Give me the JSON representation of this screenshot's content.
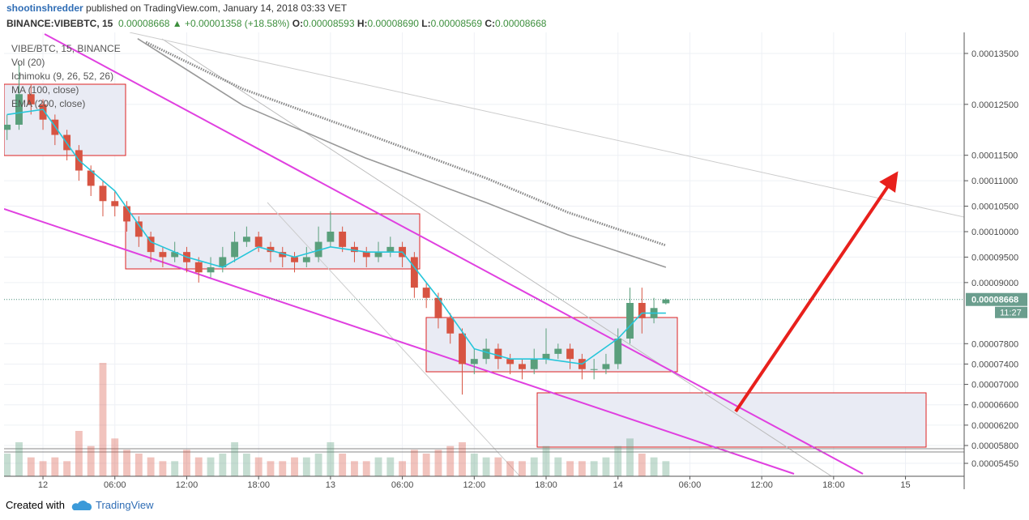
{
  "header": {
    "author": "shootinshredder",
    "published": "published on TradingView.com, January 14, 2018 03:33 VET",
    "symbol": "BINANCE:VIBEBTC, 15",
    "last": "0.00008668",
    "change": "▲ +0.00001358 (+18.58%)",
    "ohlc": [
      {
        "key": "O:",
        "value": "0.00008593"
      },
      {
        "key": "H:",
        "value": "0.00008690"
      },
      {
        "key": "L:",
        "value": "0.00008569"
      },
      {
        "key": "C:",
        "value": "0.00008668"
      }
    ]
  },
  "chart_data": {
    "type": "candlestick",
    "legend": [
      "Ichimoku (9, 26, 52, 26)"
    ],
    "candles": {
      "name": "VIBE/BTC, 15, BINANCE",
      "up_color": "#5a9f7c",
      "down_color": "#d75442",
      "x": [
        -3,
        -2,
        -1,
        0,
        1,
        2,
        3,
        4,
        5,
        6,
        7,
        8,
        9,
        10,
        11,
        12,
        13,
        14,
        15,
        16,
        17,
        18,
        19,
        20,
        21,
        22,
        23,
        24,
        25,
        26,
        27,
        28,
        29,
        30,
        31,
        32,
        33,
        34,
        35,
        36,
        37,
        38,
        39,
        40,
        41,
        42,
        43,
        44,
        45,
        46,
        47,
        48,
        49,
        50,
        51,
        52
      ],
      "ohlc": [
        [
          0.00012,
          0.000123,
          0.000118,
          0.000121
        ],
        [
          0.000121,
          0.000133,
          0.00012,
          0.000127
        ],
        [
          0.000127,
          0.000129,
          0.000123,
          0.000125
        ],
        [
          0.000125,
          0.000126,
          0.00012,
          0.000122
        ],
        [
          0.000122,
          0.000123,
          0.000117,
          0.000119
        ],
        [
          0.000119,
          0.00012,
          0.000114,
          0.000116
        ],
        [
          0.000116,
          0.000117,
          0.00011,
          0.000112
        ],
        [
          0.000112,
          0.000113,
          0.000107,
          0.000109
        ],
        [
          0.000109,
          0.00011,
          0.000103,
          0.000106
        ],
        [
          0.000106,
          0.000108,
          0.000103,
          0.000105
        ],
        [
          0.000105,
          0.000106,
          0.0001,
          0.000102
        ],
        [
          0.000102,
          0.000103,
          9.7e-05,
          9.9e-05
        ],
        [
          9.9e-05,
          0.0001,
          9.4e-05,
          9.6e-05
        ],
        [
          9.6e-05,
          9.7e-05,
          9.3e-05,
          9.5e-05
        ],
        [
          9.5e-05,
          9.8e-05,
          9.4e-05,
          9.6e-05
        ],
        [
          9.6e-05,
          9.7e-05,
          9.2e-05,
          9.4e-05
        ],
        [
          9.4e-05,
          9.5e-05,
          9e-05,
          9.2e-05
        ],
        [
          9.2e-05,
          9.5e-05,
          9.1e-05,
          9.3e-05
        ],
        [
          9.3e-05,
          9.7e-05,
          9.2e-05,
          9.5e-05
        ],
        [
          9.5e-05,
          0.0001,
          9.4e-05,
          9.8e-05
        ],
        [
          9.8e-05,
          0.000101,
          9.7e-05,
          9.9e-05
        ],
        [
          9.9e-05,
          0.0001,
          9.6e-05,
          9.7e-05
        ],
        [
          9.7e-05,
          9.8e-05,
          9.4e-05,
          9.6e-05
        ],
        [
          9.6e-05,
          9.7e-05,
          9.3e-05,
          9.5e-05
        ],
        [
          9.5e-05,
          9.6e-05,
          9.2e-05,
          9.4e-05
        ],
        [
          9.4e-05,
          9.7e-05,
          9.3e-05,
          9.5e-05
        ],
        [
          9.5e-05,
          0.000101,
          9.4e-05,
          9.8e-05
        ],
        [
          9.8e-05,
          0.000104,
          9.7e-05,
          0.0001
        ],
        [
          0.0001,
          0.000101,
          9.6e-05,
          9.7e-05
        ],
        [
          9.7e-05,
          9.8e-05,
          9.4e-05,
          9.6e-05
        ],
        [
          9.6e-05,
          9.7e-05,
          9.3e-05,
          9.5e-05
        ],
        [
          9.5e-05,
          9.8e-05,
          9.4e-05,
          9.6e-05
        ],
        [
          9.6e-05,
          9.9e-05,
          9.5e-05,
          9.7e-05
        ],
        [
          9.7e-05,
          9.8e-05,
          9.3e-05,
          9.5e-05
        ],
        [
          9.5e-05,
          9.6e-05,
          8.7e-05,
          8.9e-05
        ],
        [
          8.9e-05,
          9e-05,
          8.5e-05,
          8.7e-05
        ],
        [
          8.7e-05,
          8.8e-05,
          8.1e-05,
          8.3e-05
        ],
        [
          8.3e-05,
          8.4e-05,
          7.8e-05,
          8e-05
        ],
        [
          8e-05,
          8.1e-05,
          6.8e-05,
          7.4e-05
        ],
        [
          7.4e-05,
          7.7e-05,
          7.2e-05,
          7.5e-05
        ],
        [
          7.5e-05,
          7.9e-05,
          7.4e-05,
          7.7e-05
        ],
        [
          7.7e-05,
          7.8e-05,
          7.3e-05,
          7.5e-05
        ],
        [
          7.5e-05,
          7.6e-05,
          7.2e-05,
          7.4e-05
        ],
        [
          7.4e-05,
          7.5e-05,
          7.1e-05,
          7.3e-05
        ],
        [
          7.3e-05,
          7.7e-05,
          7.2e-05,
          7.5e-05
        ],
        [
          7.5e-05,
          8.1e-05,
          7.4e-05,
          7.6e-05
        ],
        [
          7.6e-05,
          7.8e-05,
          7.5e-05,
          7.7e-05
        ],
        [
          7.7e-05,
          7.8e-05,
          7.3e-05,
          7.5e-05
        ],
        [
          7.5e-05,
          7.6e-05,
          7.1e-05,
          7.3e-05
        ],
        [
          7.3e-05,
          7.5e-05,
          7.1e-05,
          7.3e-05
        ],
        [
          7.3e-05,
          7.6e-05,
          7.2e-05,
          7.4e-05
        ],
        [
          7.4e-05,
          8.1e-05,
          7.3e-05,
          7.9e-05
        ],
        [
          7.9e-05,
          8.9e-05,
          7.8e-05,
          8.6e-05
        ],
        [
          8.6e-05,
          8.9e-05,
          8e-05,
          8.3e-05
        ],
        [
          8.3e-05,
          8.7e-05,
          8.2e-05,
          8.5e-05
        ],
        [
          8.593e-05,
          8.69e-05,
          8.569e-05,
          8.668e-05
        ]
      ]
    },
    "volume": {
      "name": "Vol (20)",
      "values": [
        30,
        45,
        25,
        20,
        25,
        20,
        60,
        40,
        150,
        50,
        35,
        30,
        25,
        20,
        20,
        35,
        25,
        25,
        30,
        45,
        30,
        25,
        20,
        20,
        25,
        25,
        30,
        45,
        30,
        20,
        20,
        25,
        25,
        20,
        35,
        30,
        35,
        40,
        45,
        30,
        25,
        25,
        20,
        20,
        25,
        40,
        25,
        20,
        20,
        20,
        25,
        40,
        50,
        30,
        25,
        20
      ]
    },
    "series": [
      {
        "name": "Ichimoku (9, 26, 52, 26)",
        "color": "#26c6da",
        "style": "solid",
        "x": [
          -3,
          0,
          3,
          6,
          9,
          12,
          15,
          18,
          21,
          24,
          27,
          30,
          33,
          36,
          39,
          42,
          45,
          48,
          50,
          52
        ],
        "values": [
          0.000123,
          0.000124,
          0.000114,
          0.000108,
          9.8e-05,
          9.5e-05,
          9.3e-05,
          9.7e-05,
          9.5e-05,
          9.7e-05,
          9.6e-05,
          9.6e-05,
          8.7e-05,
          7.7e-05,
          7.5e-05,
          7.5e-05,
          7.4e-05,
          7.9e-05,
          8.4e-05,
          8.4e-05
        ]
      },
      {
        "name": "MA (100, close)",
        "color": "#888888",
        "style": "dotted",
        "x": [
          8.6,
          16.7,
          26.9,
          37,
          43.8,
          52
        ],
        "values": [
          0.0001372,
          0.000128,
          0.0001193,
          0.0001105,
          0.0001038,
          9.73e-05
        ]
      },
      {
        "name": "EMA (200, close)",
        "color": "#999999",
        "style": "solid",
        "x": [
          7.9,
          16.7,
          26.9,
          37,
          43.8,
          52
        ],
        "values": [
          0.0001379,
          0.0001248,
          0.0001145,
          0.0001057,
          9.94e-05,
          9.3e-05
        ]
      }
    ],
    "xlim": [
      -3.25,
      76.9
    ],
    "xticks": [
      {
        "value": 0,
        "label": "12"
      },
      {
        "value": 6,
        "label": "06:00"
      },
      {
        "value": 12,
        "label": "12:00"
      },
      {
        "value": 18,
        "label": "18:00"
      },
      {
        "value": 24,
        "label": "13"
      },
      {
        "value": 30,
        "label": "06:00"
      },
      {
        "value": 36,
        "label": "12:00"
      },
      {
        "value": 42,
        "label": "18:00"
      },
      {
        "value": 48,
        "label": "14"
      },
      {
        "value": 54,
        "label": "06:00"
      },
      {
        "value": 60,
        "label": "12:00"
      },
      {
        "value": 66,
        "label": "18:00"
      },
      {
        "value": 72,
        "label": "15"
      }
    ],
    "ylim": [
      5.196e-05,
      0.00013913
    ],
    "yticks": [
      {
        "value": 0.000135,
        "label": "0.00013500"
      },
      {
        "value": 0.000125,
        "label": "0.00012500"
      },
      {
        "value": 0.000115,
        "label": "0.00011500"
      },
      {
        "value": 0.00011,
        "label": "0.00011000"
      },
      {
        "value": 0.000105,
        "label": "0.00010500"
      },
      {
        "value": 0.0001,
        "label": "0.00010000"
      },
      {
        "value": 9.5e-05,
        "label": "0.00009500"
      },
      {
        "value": 9e-05,
        "label": "0.00009000"
      },
      {
        "value": 7.8e-05,
        "label": "0.00007800"
      },
      {
        "value": 7.4e-05,
        "label": "0.00007400"
      },
      {
        "value": 7e-05,
        "label": "0.00007000"
      },
      {
        "value": 6.6e-05,
        "label": "0.00006600"
      },
      {
        "value": 6.2e-05,
        "label": "0.00006200"
      },
      {
        "value": 5.8e-05,
        "label": "0.00005800"
      },
      {
        "value": 5.45e-05,
        "label": "0.00005450"
      }
    ],
    "grid": true,
    "price_tag": {
      "value": 8.668e-05,
      "label": "0.00008668"
    },
    "countdown": "11:27"
  },
  "footer": {
    "created": "Created with",
    "brand": "TradingView"
  }
}
